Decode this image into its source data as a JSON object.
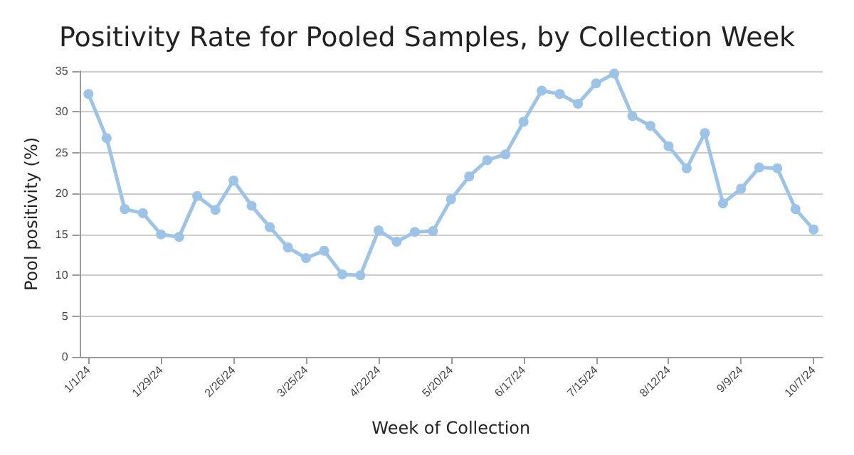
{
  "chart_data": {
    "type": "line",
    "title": "Positivity Rate for Pooled Samples, by Collection Week",
    "xlabel": "Week of Collection",
    "ylabel": "Pool positivity (%)",
    "categories": [
      "1/1/24",
      null,
      null,
      null,
      "1/29/24",
      null,
      null,
      null,
      "2/26/24",
      null,
      null,
      null,
      "3/25/24",
      null,
      null,
      null,
      "4/22/24",
      null,
      null,
      null,
      "5/20/24",
      null,
      null,
      null,
      "6/17/24",
      null,
      null,
      null,
      "7/15/24",
      null,
      null,
      null,
      "8/12/24",
      null,
      null,
      null,
      "9/9/24",
      null,
      null,
      null,
      "10/7/24"
    ],
    "series": [
      {
        "color": "#9dc3e6",
        "values": [
          32.2,
          26.8,
          18.1,
          17.6,
          15.0,
          14.7,
          19.7,
          18.0,
          21.6,
          18.5,
          15.9,
          13.4,
          12.1,
          13.0,
          10.1,
          10.0,
          15.5,
          14.1,
          15.3,
          15.4,
          19.3,
          22.1,
          24.1,
          24.8,
          28.8,
          32.6,
          32.2,
          31.0,
          33.5,
          34.7,
          29.5,
          28.3,
          25.8,
          23.1,
          27.4,
          18.8,
          20.6,
          23.2,
          23.1,
          18.1,
          15.6
        ]
      }
    ],
    "ylim": [
      0,
      35
    ],
    "yticks": [
      0,
      5,
      10,
      15,
      20,
      25,
      30,
      35
    ],
    "grid": "y",
    "marker": "circle",
    "line_style": "solid"
  }
}
